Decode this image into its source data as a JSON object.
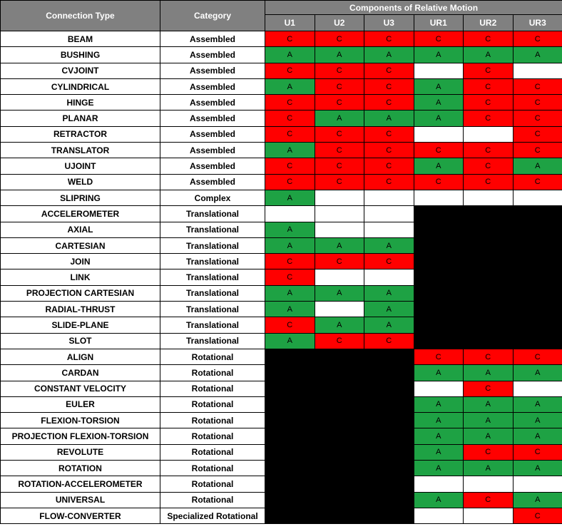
{
  "headers": {
    "connection_type": "Connection Type",
    "category": "Category",
    "components": "Components of Relative Motion",
    "motions": [
      "U1",
      "U2",
      "U3",
      "UR1",
      "UR2",
      "UR3"
    ]
  },
  "colors": {
    "header_bg": "#808080",
    "allowed_green": "#1ea244",
    "constrained_red": "#ff0000",
    "not_applicable_black": "#000000",
    "blank_white": "#ffffff"
  },
  "rows": [
    {
      "type": "BEAM",
      "category": "Assembled",
      "cells": [
        "C",
        "C",
        "C",
        "C",
        "C",
        "C"
      ]
    },
    {
      "type": "BUSHING",
      "category": "Assembled",
      "cells": [
        "A",
        "A",
        "A",
        "A",
        "A",
        "A"
      ]
    },
    {
      "type": "CVJOINT",
      "category": "Assembled",
      "cells": [
        "C",
        "C",
        "C",
        "",
        "C",
        ""
      ]
    },
    {
      "type": "CYLINDRICAL",
      "category": "Assembled",
      "cells": [
        "A",
        "C",
        "C",
        "A",
        "C",
        "C"
      ]
    },
    {
      "type": "HINGE",
      "category": "Assembled",
      "cells": [
        "C",
        "C",
        "C",
        "A",
        "C",
        "C"
      ]
    },
    {
      "type": "PLANAR",
      "category": "Assembled",
      "cells": [
        "C",
        "A",
        "A",
        "A",
        "C",
        "C"
      ]
    },
    {
      "type": "RETRACTOR",
      "category": "Assembled",
      "cells": [
        "C",
        "C",
        "C",
        "",
        "",
        "C"
      ]
    },
    {
      "type": "TRANSLATOR",
      "category": "Assembled",
      "cells": [
        "A",
        "C",
        "C",
        "C",
        "C",
        "C"
      ]
    },
    {
      "type": "UJOINT",
      "category": "Assembled",
      "cells": [
        "C",
        "C",
        "C",
        "A",
        "C",
        "A"
      ]
    },
    {
      "type": "WELD",
      "category": "Assembled",
      "cells": [
        "C",
        "C",
        "C",
        "C",
        "C",
        "C"
      ]
    },
    {
      "type": "SLIPRING",
      "category": "Complex",
      "cells": [
        "A",
        "",
        "",
        "",
        "",
        ""
      ]
    },
    {
      "type": "ACCELEROMETER",
      "category": "Translational",
      "cells": [
        "",
        "",
        "",
        "X",
        "X",
        "X"
      ]
    },
    {
      "type": "AXIAL",
      "category": "Translational",
      "cells": [
        "A",
        "",
        "",
        "X",
        "X",
        "X"
      ]
    },
    {
      "type": "CARTESIAN",
      "category": "Translational",
      "cells": [
        "A",
        "A",
        "A",
        "X",
        "X",
        "X"
      ]
    },
    {
      "type": "JOIN",
      "category": "Translational",
      "cells": [
        "C",
        "C",
        "C",
        "X",
        "X",
        "X"
      ]
    },
    {
      "type": "LINK",
      "category": "Translational",
      "cells": [
        "C",
        "",
        "",
        "X",
        "X",
        "X"
      ]
    },
    {
      "type": "PROJECTION CARTESIAN",
      "category": "Translational",
      "cells": [
        "A",
        "A",
        "A",
        "X",
        "X",
        "X"
      ]
    },
    {
      "type": "RADIAL-THRUST",
      "category": "Translational",
      "cells": [
        "A",
        "",
        "A",
        "X",
        "X",
        "X"
      ]
    },
    {
      "type": "SLIDE-PLANE",
      "category": "Translational",
      "cells": [
        "C",
        "A",
        "A",
        "X",
        "X",
        "X"
      ]
    },
    {
      "type": "SLOT",
      "category": "Translational",
      "cells": [
        "A",
        "C",
        "C",
        "X",
        "X",
        "X"
      ]
    },
    {
      "type": "ALIGN",
      "category": "Rotational",
      "cells": [
        "X",
        "X",
        "X",
        "C",
        "C",
        "C"
      ]
    },
    {
      "type": "CARDAN",
      "category": "Rotational",
      "cells": [
        "X",
        "X",
        "X",
        "A",
        "A",
        "A"
      ]
    },
    {
      "type": "CONSTANT VELOCITY",
      "category": "Rotational",
      "cells": [
        "X",
        "X",
        "X",
        "",
        "C",
        ""
      ]
    },
    {
      "type": "EULER",
      "category": "Rotational",
      "cells": [
        "X",
        "X",
        "X",
        "A",
        "A",
        "A"
      ]
    },
    {
      "type": "FLEXION-TORSION",
      "category": "Rotational",
      "cells": [
        "X",
        "X",
        "X",
        "A",
        "A",
        "A"
      ]
    },
    {
      "type": "PROJECTION FLEXION-TORSION",
      "category": "Rotational",
      "cells": [
        "X",
        "X",
        "X",
        "A",
        "A",
        "A"
      ]
    },
    {
      "type": "REVOLUTE",
      "category": "Rotational",
      "cells": [
        "X",
        "X",
        "X",
        "A",
        "C",
        "C"
      ]
    },
    {
      "type": "ROTATION",
      "category": "Rotational",
      "cells": [
        "X",
        "X",
        "X",
        "A",
        "A",
        "A"
      ]
    },
    {
      "type": "ROTATION-ACCELEROMETER",
      "category": "Rotational",
      "cells": [
        "X",
        "X",
        "X",
        "",
        "",
        ""
      ]
    },
    {
      "type": "UNIVERSAL",
      "category": "Rotational",
      "cells": [
        "X",
        "X",
        "X",
        "A",
        "C",
        "A"
      ]
    },
    {
      "type": "FLOW-CONVERTER",
      "category": "Specialized Rotational",
      "cells": [
        "X",
        "X",
        "X",
        "",
        "",
        "C"
      ]
    }
  ]
}
